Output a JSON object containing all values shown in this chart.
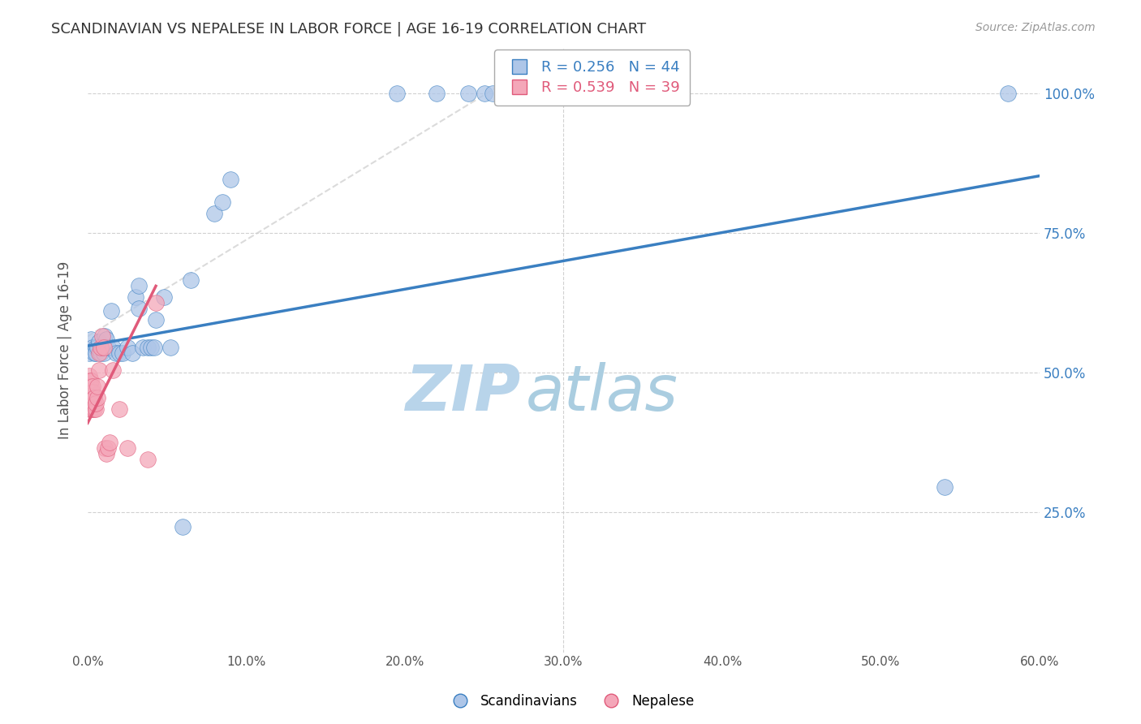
{
  "title": "SCANDINAVIAN VS NEPALESE IN LABOR FORCE | AGE 16-19 CORRELATION CHART",
  "source_text": "Source: ZipAtlas.com",
  "ylabel": "In Labor Force | Age 16-19",
  "xlim": [
    0.0,
    0.6
  ],
  "ylim": [
    0.3,
    1.08
  ],
  "xticks": [
    0.0,
    0.1,
    0.2,
    0.3,
    0.4,
    0.5,
    0.6
  ],
  "xticklabels": [
    "0.0%",
    "10.0%",
    "20.0%",
    "30.0%",
    "40.0%",
    "50.0%",
    "60.0%"
  ],
  "yticks": [
    0.25,
    0.5,
    0.75,
    1.0
  ],
  "yticklabels": [
    "25.0%",
    "50.0%",
    "75.0%",
    "100.0%"
  ],
  "R_scand": 0.256,
  "N_scand": 44,
  "R_nepal": 0.539,
  "N_nepal": 39,
  "scatter_blue_color": "#aec6e8",
  "scatter_pink_color": "#f4a7b9",
  "line_blue_color": "#3a7fc1",
  "line_pink_color": "#e05a7a",
  "line_diag_color": "#cccccc",
  "watermark_zip": "ZIP",
  "watermark_atlas": "atlas",
  "watermark_color": "#c8dff0",
  "background_color": "#ffffff",
  "grid_color": "#cccccc",
  "title_color": "#333333",
  "axis_label_color": "#555555",
  "right_tick_color": "#3a7fc1",
  "blue_line_x": [
    0.0,
    0.6
  ],
  "blue_line_y": [
    0.548,
    0.852
  ],
  "pink_line_x": [
    0.0,
    0.043
  ],
  "pink_line_y": [
    0.41,
    0.655
  ],
  "diag_line_x": [
    0.0,
    0.275
  ],
  "diag_line_y": [
    0.565,
    1.04
  ],
  "scand_x": [
    0.001,
    0.002,
    0.003,
    0.004,
    0.005,
    0.005,
    0.006,
    0.007,
    0.008,
    0.009,
    0.01,
    0.011,
    0.012,
    0.013,
    0.015,
    0.016,
    0.018,
    0.02,
    0.022,
    0.025,
    0.028,
    0.03,
    0.032,
    0.032,
    0.035,
    0.038,
    0.04,
    0.042,
    0.043,
    0.048,
    0.052,
    0.06,
    0.065,
    0.08,
    0.085,
    0.09,
    0.195,
    0.22,
    0.24,
    0.25,
    0.255,
    0.27,
    0.54,
    0.58
  ],
  "scand_y": [
    0.535,
    0.56,
    0.545,
    0.535,
    0.545,
    0.535,
    0.545,
    0.555,
    0.535,
    0.545,
    0.535,
    0.565,
    0.56,
    0.545,
    0.61,
    0.545,
    0.535,
    0.535,
    0.535,
    0.545,
    0.535,
    0.635,
    0.655,
    0.615,
    0.545,
    0.545,
    0.545,
    0.545,
    0.595,
    0.635,
    0.545,
    0.225,
    0.665,
    0.785,
    0.805,
    0.845,
    1.0,
    1.0,
    1.0,
    1.0,
    1.0,
    1.0,
    0.295,
    1.0
  ],
  "nepal_x": [
    0.001,
    0.001,
    0.001,
    0.001,
    0.001,
    0.001,
    0.001,
    0.002,
    0.002,
    0.002,
    0.002,
    0.002,
    0.002,
    0.003,
    0.003,
    0.003,
    0.003,
    0.003,
    0.004,
    0.004,
    0.004,
    0.005,
    0.005,
    0.006,
    0.006,
    0.007,
    0.007,
    0.008,
    0.009,
    0.01,
    0.011,
    0.012,
    0.013,
    0.014,
    0.016,
    0.02,
    0.025,
    0.038,
    0.043
  ],
  "nepal_y": [
    0.435,
    0.445,
    0.455,
    0.465,
    0.475,
    0.485,
    0.495,
    0.435,
    0.445,
    0.455,
    0.465,
    0.475,
    0.485,
    0.435,
    0.445,
    0.455,
    0.465,
    0.475,
    0.435,
    0.445,
    0.455,
    0.435,
    0.445,
    0.455,
    0.475,
    0.505,
    0.535,
    0.545,
    0.565,
    0.545,
    0.365,
    0.355,
    0.365,
    0.375,
    0.505,
    0.435,
    0.365,
    0.345,
    0.625
  ]
}
